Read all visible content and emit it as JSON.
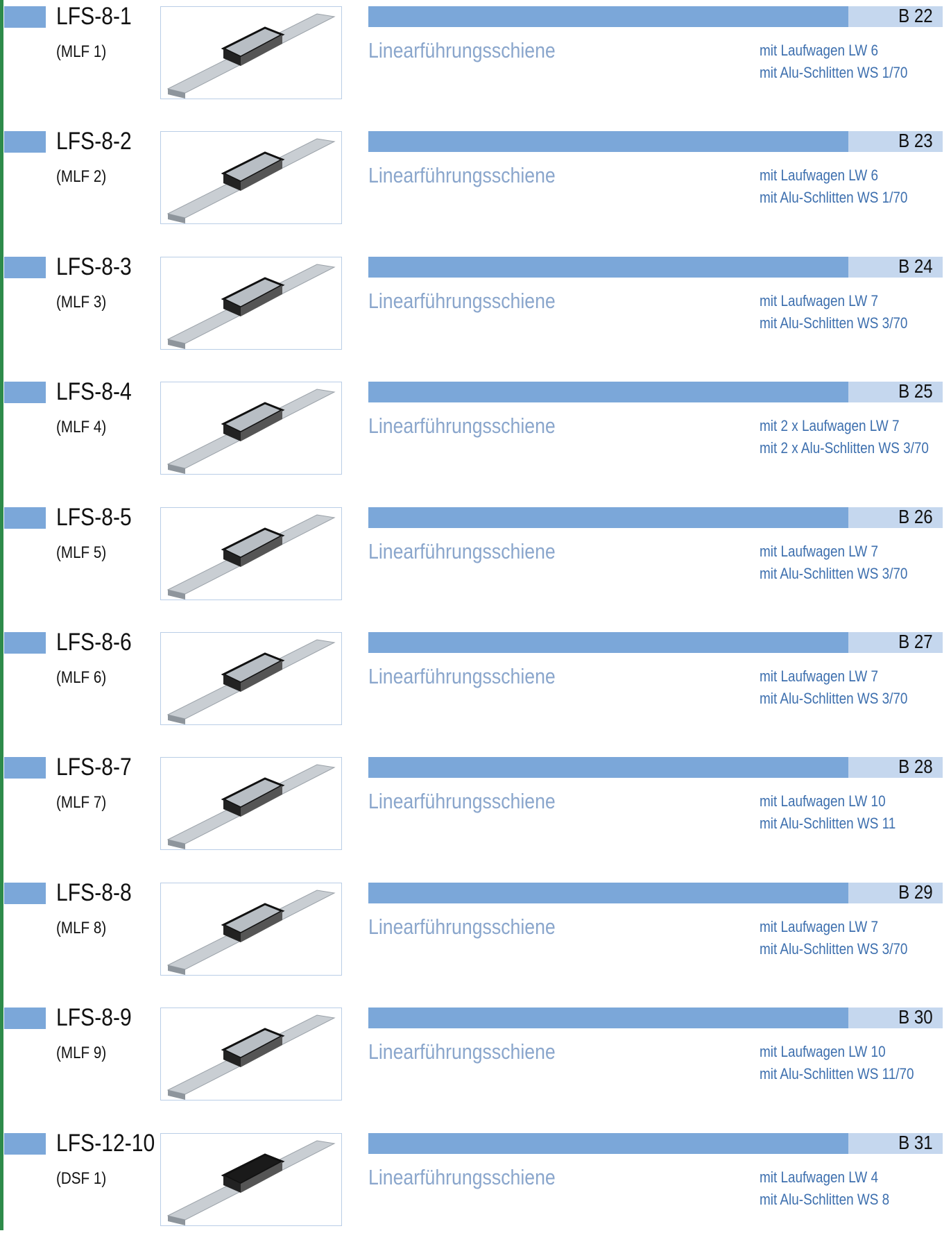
{
  "rows": [
    {
      "code": "LFS-8-1",
      "ref": "(MLF 1)",
      "description": "Linearführungsschiene",
      "page": "B 22",
      "details": [
        "mit Laufwagen LW 6",
        "mit Alu-Schlitten WS 1/70"
      ]
    },
    {
      "code": "LFS-8-2",
      "ref": "(MLF 2)",
      "description": "Linearführungsschiene",
      "page": "B 23",
      "details": [
        "mit Laufwagen LW 6",
        "mit Alu-Schlitten WS 1/70"
      ]
    },
    {
      "code": "LFS-8-3",
      "ref": "(MLF 3)",
      "description": "Linearführungsschiene",
      "page": "B 24",
      "details": [
        "mit Laufwagen LW 7",
        "mit Alu-Schlitten WS 3/70"
      ]
    },
    {
      "code": "LFS-8-4",
      "ref": "(MLF 4)",
      "description": "Linearführungsschiene",
      "page": "B 25",
      "details": [
        "mit 2 x Laufwagen LW 7",
        "mit 2 x Alu-Schlitten WS 3/70"
      ]
    },
    {
      "code": "LFS-8-5",
      "ref": "(MLF 5)",
      "description": "Linearführungsschiene",
      "page": "B 26",
      "details": [
        "mit Laufwagen LW 7",
        "mit Alu-Schlitten WS 3/70"
      ]
    },
    {
      "code": "LFS-8-6",
      "ref": "(MLF 6)",
      "description": "Linearführungsschiene",
      "page": "B 27",
      "details": [
        "mit Laufwagen LW 7",
        "mit Alu-Schlitten WS 3/70"
      ]
    },
    {
      "code": "LFS-8-7",
      "ref": "(MLF 7)",
      "description": "Linearführungsschiene",
      "page": "B 28",
      "details": [
        "mit Laufwagen LW 10",
        "mit Alu-Schlitten WS 11"
      ]
    },
    {
      "code": "LFS-8-8",
      "ref": "(MLF 8)",
      "description": "Linearführungsschiene",
      "page": "B 29",
      "details": [
        "mit Laufwagen LW 7",
        "mit Alu-Schlitten WS 3/70"
      ]
    },
    {
      "code": "LFS-8-9",
      "ref": "(MLF 9)",
      "description": "Linearführungsschiene",
      "page": "B 30",
      "details": [
        "mit Laufwagen LW 10",
        "mit Alu-Schlitten WS 11/70"
      ]
    },
    {
      "code": "LFS-12-10",
      "ref": "(DSF 1)",
      "description": "Linearführungsschiene",
      "page": "B 31",
      "details": [
        "mit Laufwagen LW 4",
        "mit Alu-Schlitten WS 8"
      ]
    }
  ]
}
